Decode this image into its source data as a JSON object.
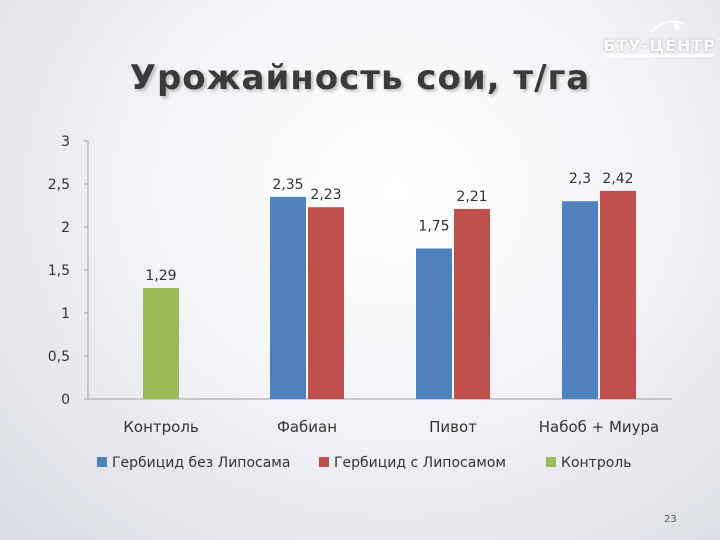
{
  "slide": {
    "title": "Урожайность сои, т/га",
    "logo_text": "БТУ-ЦЕНТР",
    "page_number": "23"
  },
  "colors": {
    "series_blue": "#4f81bd",
    "series_red": "#c0504d",
    "series_green": "#9bbb59"
  },
  "chart_data": {
    "type": "bar",
    "title": "Урожайность сои, т/га",
    "xlabel": "",
    "ylabel": "",
    "ylim": [
      0,
      3
    ],
    "y_ticks": [
      "0",
      "0,5",
      "1",
      "1,5",
      "2",
      "2,5",
      "3"
    ],
    "categories": [
      "Контроль",
      "Фабиан",
      "Пивот",
      "Набоб + Миура"
    ],
    "series": [
      {
        "name": "Гербицид без Липосама",
        "color": "#4f81bd",
        "values": [
          null,
          2.35,
          1.75,
          2.3
        ],
        "labels": [
          "",
          "2,35",
          "1,75",
          "2,3"
        ]
      },
      {
        "name": "Гербицид с Липосамом",
        "color": "#c0504d",
        "values": [
          null,
          2.23,
          2.21,
          2.42
        ],
        "labels": [
          "",
          "2,23",
          "2,21",
          "2,42"
        ]
      },
      {
        "name": "Контроль",
        "color": "#9bbb59",
        "values": [
          1.29,
          null,
          null,
          null
        ],
        "labels": [
          "1,29",
          "",
          "",
          ""
        ]
      }
    ],
    "grid": false,
    "legend_position": "bottom"
  }
}
